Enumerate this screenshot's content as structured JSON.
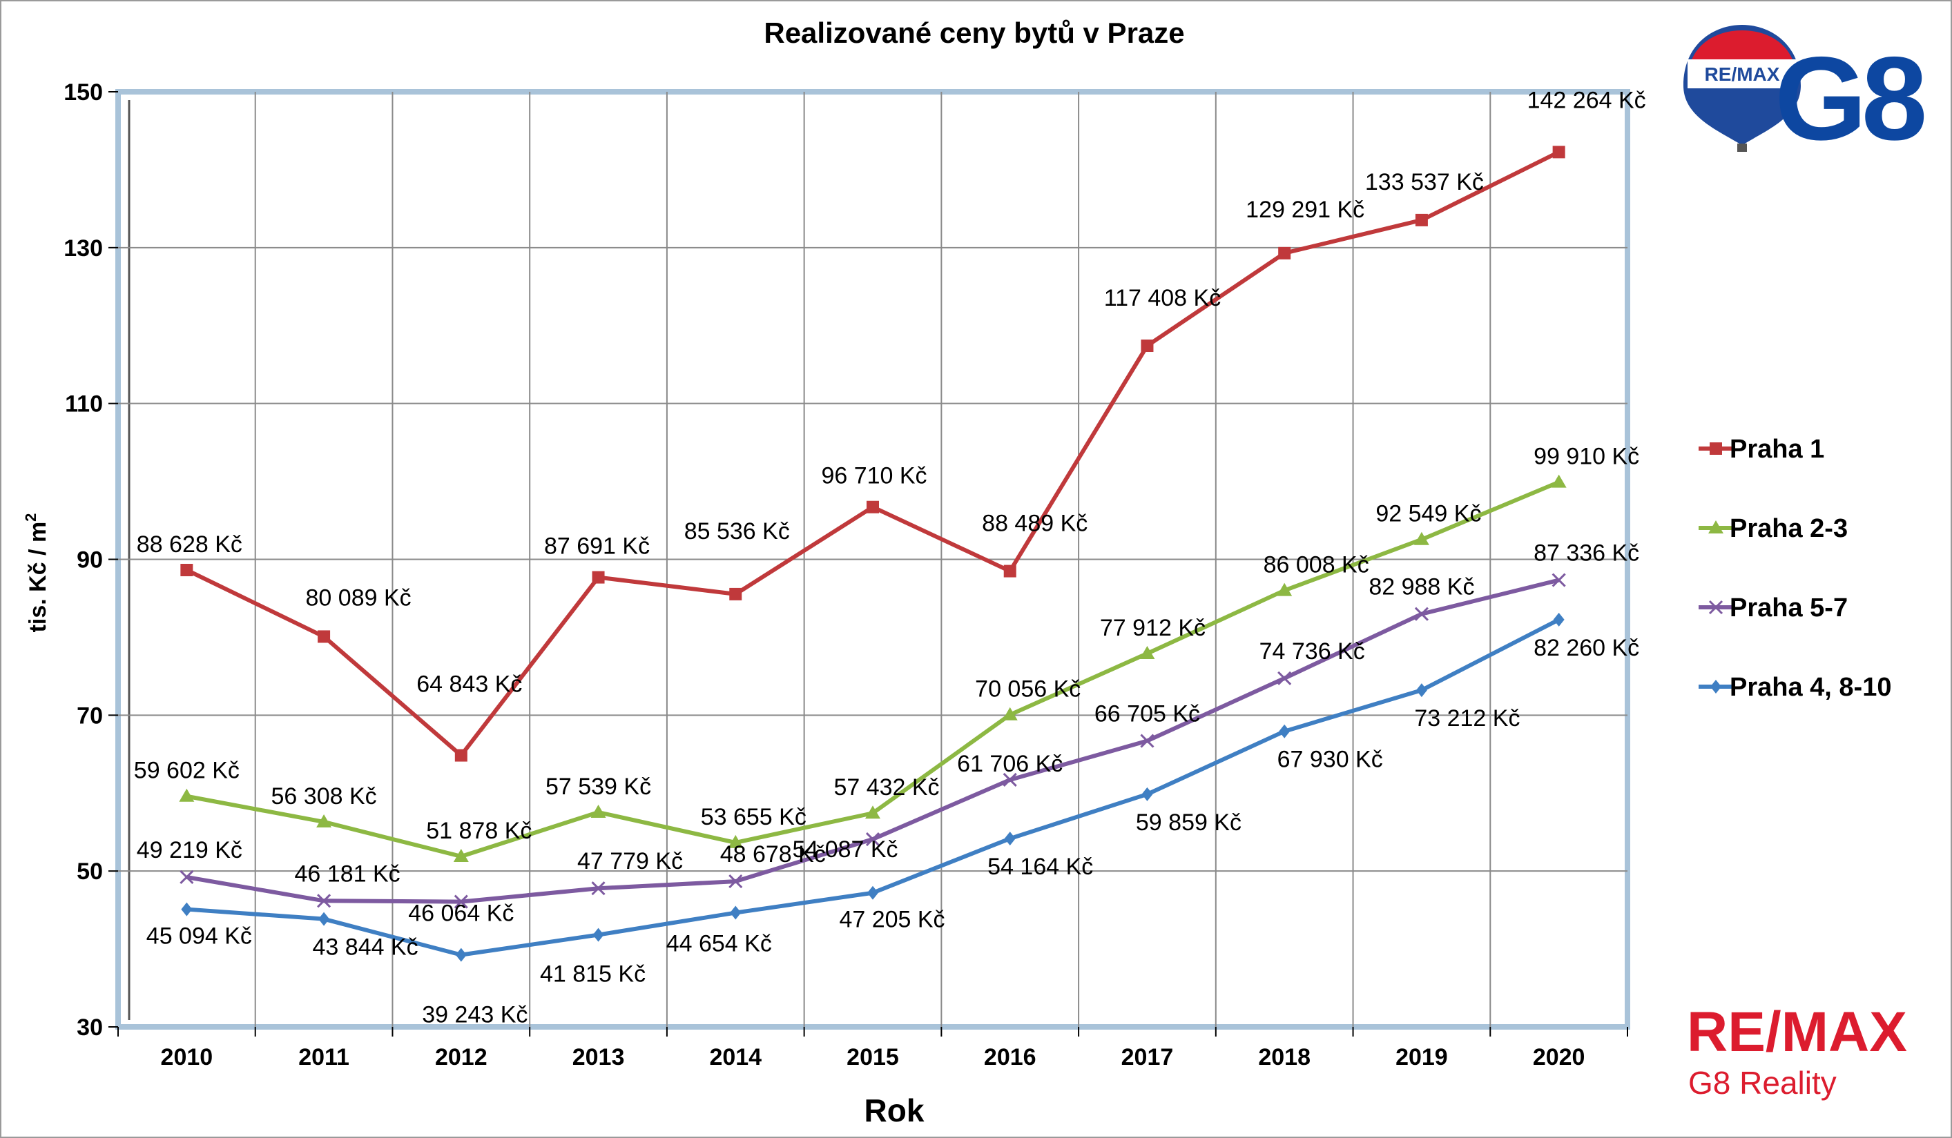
{
  "chart_data": {
    "type": "line",
    "title": "Realizované ceny bytů v Praze",
    "xlabel": "Rok",
    "ylabel": "tis. Kč / m",
    "ylabel_sup": "2",
    "categories": [
      "2010",
      "2011",
      "2012",
      "2013",
      "2014",
      "2015",
      "2016",
      "2017",
      "2018",
      "2019",
      "2020"
    ],
    "ylim": [
      30,
      150
    ],
    "yticks": [
      30,
      50,
      70,
      90,
      110,
      130,
      150
    ],
    "grid": true,
    "legend_position": "right",
    "series": [
      {
        "name": "Praha 1",
        "color": "#c0393b",
        "marker": "square",
        "values": [
          88.628,
          80.089,
          64.843,
          87.691,
          85.536,
          96.71,
          88.489,
          117.408,
          129.291,
          133.537,
          142.264
        ],
        "labels": [
          "88 628 Kč",
          "80 089 Kč",
          "64 843 Kč",
          "87 691 Kč",
          "85 536 Kč",
          "96 710 Kč",
          "88 489 Kč",
          "117 408 Kč",
          "129 291 Kč",
          "133 537 Kč",
          "142 264 Kč"
        ]
      },
      {
        "name": "Praha 2-3",
        "color": "#8db843",
        "marker": "triangle",
        "values": [
          59.602,
          56.308,
          51.878,
          57.539,
          53.655,
          57.432,
          70.056,
          77.912,
          86.008,
          92.549,
          99.91
        ],
        "labels": [
          "59 602 Kč",
          "56 308 Kč",
          "51 878 Kč",
          "57 539 Kč",
          "53 655 Kč",
          "57 432 Kč",
          "70 056 Kč",
          "77 912 Kč",
          "86 008 Kč",
          "92 549 Kč",
          "99 910 Kč"
        ]
      },
      {
        "name": "Praha 5-7",
        "color": "#7d5aa0",
        "marker": "x",
        "values": [
          49.219,
          46.181,
          46.064,
          47.779,
          48.678,
          54.087,
          61.706,
          66.705,
          74.736,
          82.988,
          87.336
        ],
        "labels": [
          "49 219 Kč",
          "46 181 Kč",
          "46 064 Kč",
          "47 779 Kč",
          "48 678 Kč",
          "54 087 Kč",
          "61 706 Kč",
          "66 705 Kč",
          "74 736 Kč",
          "82 988 Kč",
          "87 336 Kč"
        ]
      },
      {
        "name": "Praha 4, 8-10",
        "color": "#3f7fc3",
        "marker": "diamond",
        "values": [
          45.094,
          43.844,
          39.243,
          41.815,
          44.654,
          47.205,
          54.164,
          59.859,
          67.93,
          73.212,
          82.26
        ],
        "labels": [
          "45 094 Kč",
          "43 844 Kč",
          "39 243 Kč",
          "41 815 Kč",
          "44 654 Kč",
          "47 205 Kč",
          "54 164 Kč",
          "59 859 Kč",
          "67 930 Kč",
          "73 212 Kč",
          "82 260 Kč"
        ]
      }
    ]
  },
  "logos": {
    "balloon_text": "RE/MAX",
    "g8_text": "G8",
    "brand_text": "RE/MAX",
    "brand_subtext": "G8 Reality",
    "brand_color": "#dc1c2e",
    "g8_color": "#0d47a1"
  }
}
